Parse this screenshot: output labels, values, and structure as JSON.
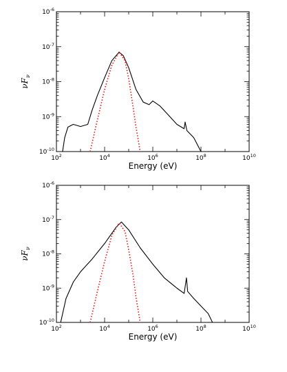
{
  "chart_data": [
    {
      "type": "line",
      "xlabel": "Energy (eV)",
      "ylabel": "νF_ν",
      "xscale": "log",
      "yscale": "log",
      "xlim": [
        100,
        10000000000
      ],
      "ylim": [
        1e-10,
        1e-06
      ],
      "x_tick_labels": [
        "10^2",
        "10^4",
        "10^6",
        "10^8",
        "10^10"
      ],
      "y_tick_labels": [
        "10^-10",
        "10^-9",
        "10^-8",
        "10^-7",
        "10^-6"
      ],
      "series": [
        {
          "style": "solid",
          "color": "#000000",
          "points": [
            [
              180,
              1e-10
            ],
            [
              220,
              2.5e-10
            ],
            [
              300,
              5e-10
            ],
            [
              500,
              6e-10
            ],
            [
              1000,
              5.2e-10
            ],
            [
              2000,
              6e-10
            ],
            [
              3000,
              1.5e-09
            ],
            [
              5000,
              4e-09
            ],
            [
              10000,
              1.3e-08
            ],
            [
              20000,
              4e-08
            ],
            [
              40000,
              7e-08
            ],
            [
              60000,
              5.5e-08
            ],
            [
              100000,
              2.5e-08
            ],
            [
              200000,
              6e-09
            ],
            [
              400000,
              2.6e-09
            ],
            [
              700000,
              2.2e-09
            ],
            [
              1000000,
              2.8e-09
            ],
            [
              2000000,
              2e-09
            ],
            [
              4000000,
              1.2e-09
            ],
            [
              10000000,
              6e-10
            ],
            [
              20000000,
              4.5e-10
            ],
            [
              22000000,
              7e-10
            ],
            [
              26000000,
              4e-10
            ],
            [
              50000000,
              2.5e-10
            ],
            [
              100000000,
              1e-10
            ]
          ]
        },
        {
          "style": "dotted",
          "color": "#e0201c",
          "points": [
            [
              2500,
              1e-10
            ],
            [
              5000,
              8e-10
            ],
            [
              10000,
              6e-09
            ],
            [
              20000,
              3e-08
            ],
            [
              40000,
              7e-08
            ],
            [
              70000,
              4e-08
            ],
            [
              100000,
              1.2e-08
            ],
            [
              150000,
              2e-09
            ],
            [
              200000,
              5e-10
            ],
            [
              300000,
              1e-10
            ]
          ]
        }
      ]
    },
    {
      "type": "line",
      "xlabel": "Energy (eV)",
      "ylabel": "νF_ν",
      "xscale": "log",
      "yscale": "log",
      "xlim": [
        100,
        10000000000
      ],
      "ylim": [
        1e-10,
        1e-06
      ],
      "x_tick_labels": [
        "10^2",
        "10^4",
        "10^6",
        "10^8",
        "10^10"
      ],
      "y_tick_labels": [
        "10^-10",
        "10^-9",
        "10^-8",
        "10^-7",
        "10^-6"
      ],
      "series": [
        {
          "style": "solid",
          "color": "#000000",
          "points": [
            [
              150,
              1e-10
            ],
            [
              250,
              5e-10
            ],
            [
              500,
              1.5e-09
            ],
            [
              1000,
              3e-09
            ],
            [
              3000,
              7e-09
            ],
            [
              10000,
              2e-08
            ],
            [
              30000,
              6e-08
            ],
            [
              50000,
              8.5e-08
            ],
            [
              100000,
              5e-08
            ],
            [
              300000,
              1.5e-08
            ],
            [
              1000000,
              5e-09
            ],
            [
              3000000,
              2e-09
            ],
            [
              10000000,
              1e-09
            ],
            [
              20000000,
              7e-10
            ],
            [
              25000000,
              2e-09
            ],
            [
              28000000,
              8e-10
            ],
            [
              50000000,
              5e-10
            ],
            [
              100000000,
              3e-10
            ],
            [
              200000000,
              1.8e-10
            ],
            [
              300000000,
              1e-10
            ]
          ]
        },
        {
          "style": "dotted",
          "color": "#e0201c",
          "points": [
            [
              2500,
              1e-10
            ],
            [
              5000,
              8e-10
            ],
            [
              10000,
              6e-09
            ],
            [
              20000,
              3.5e-08
            ],
            [
              40000,
              8e-08
            ],
            [
              70000,
              4.5e-08
            ],
            [
              100000,
              1.3e-08
            ],
            [
              150000,
              2.5e-09
            ],
            [
              200000,
              5.5e-10
            ],
            [
              300000,
              1e-10
            ]
          ]
        }
      ]
    }
  ]
}
